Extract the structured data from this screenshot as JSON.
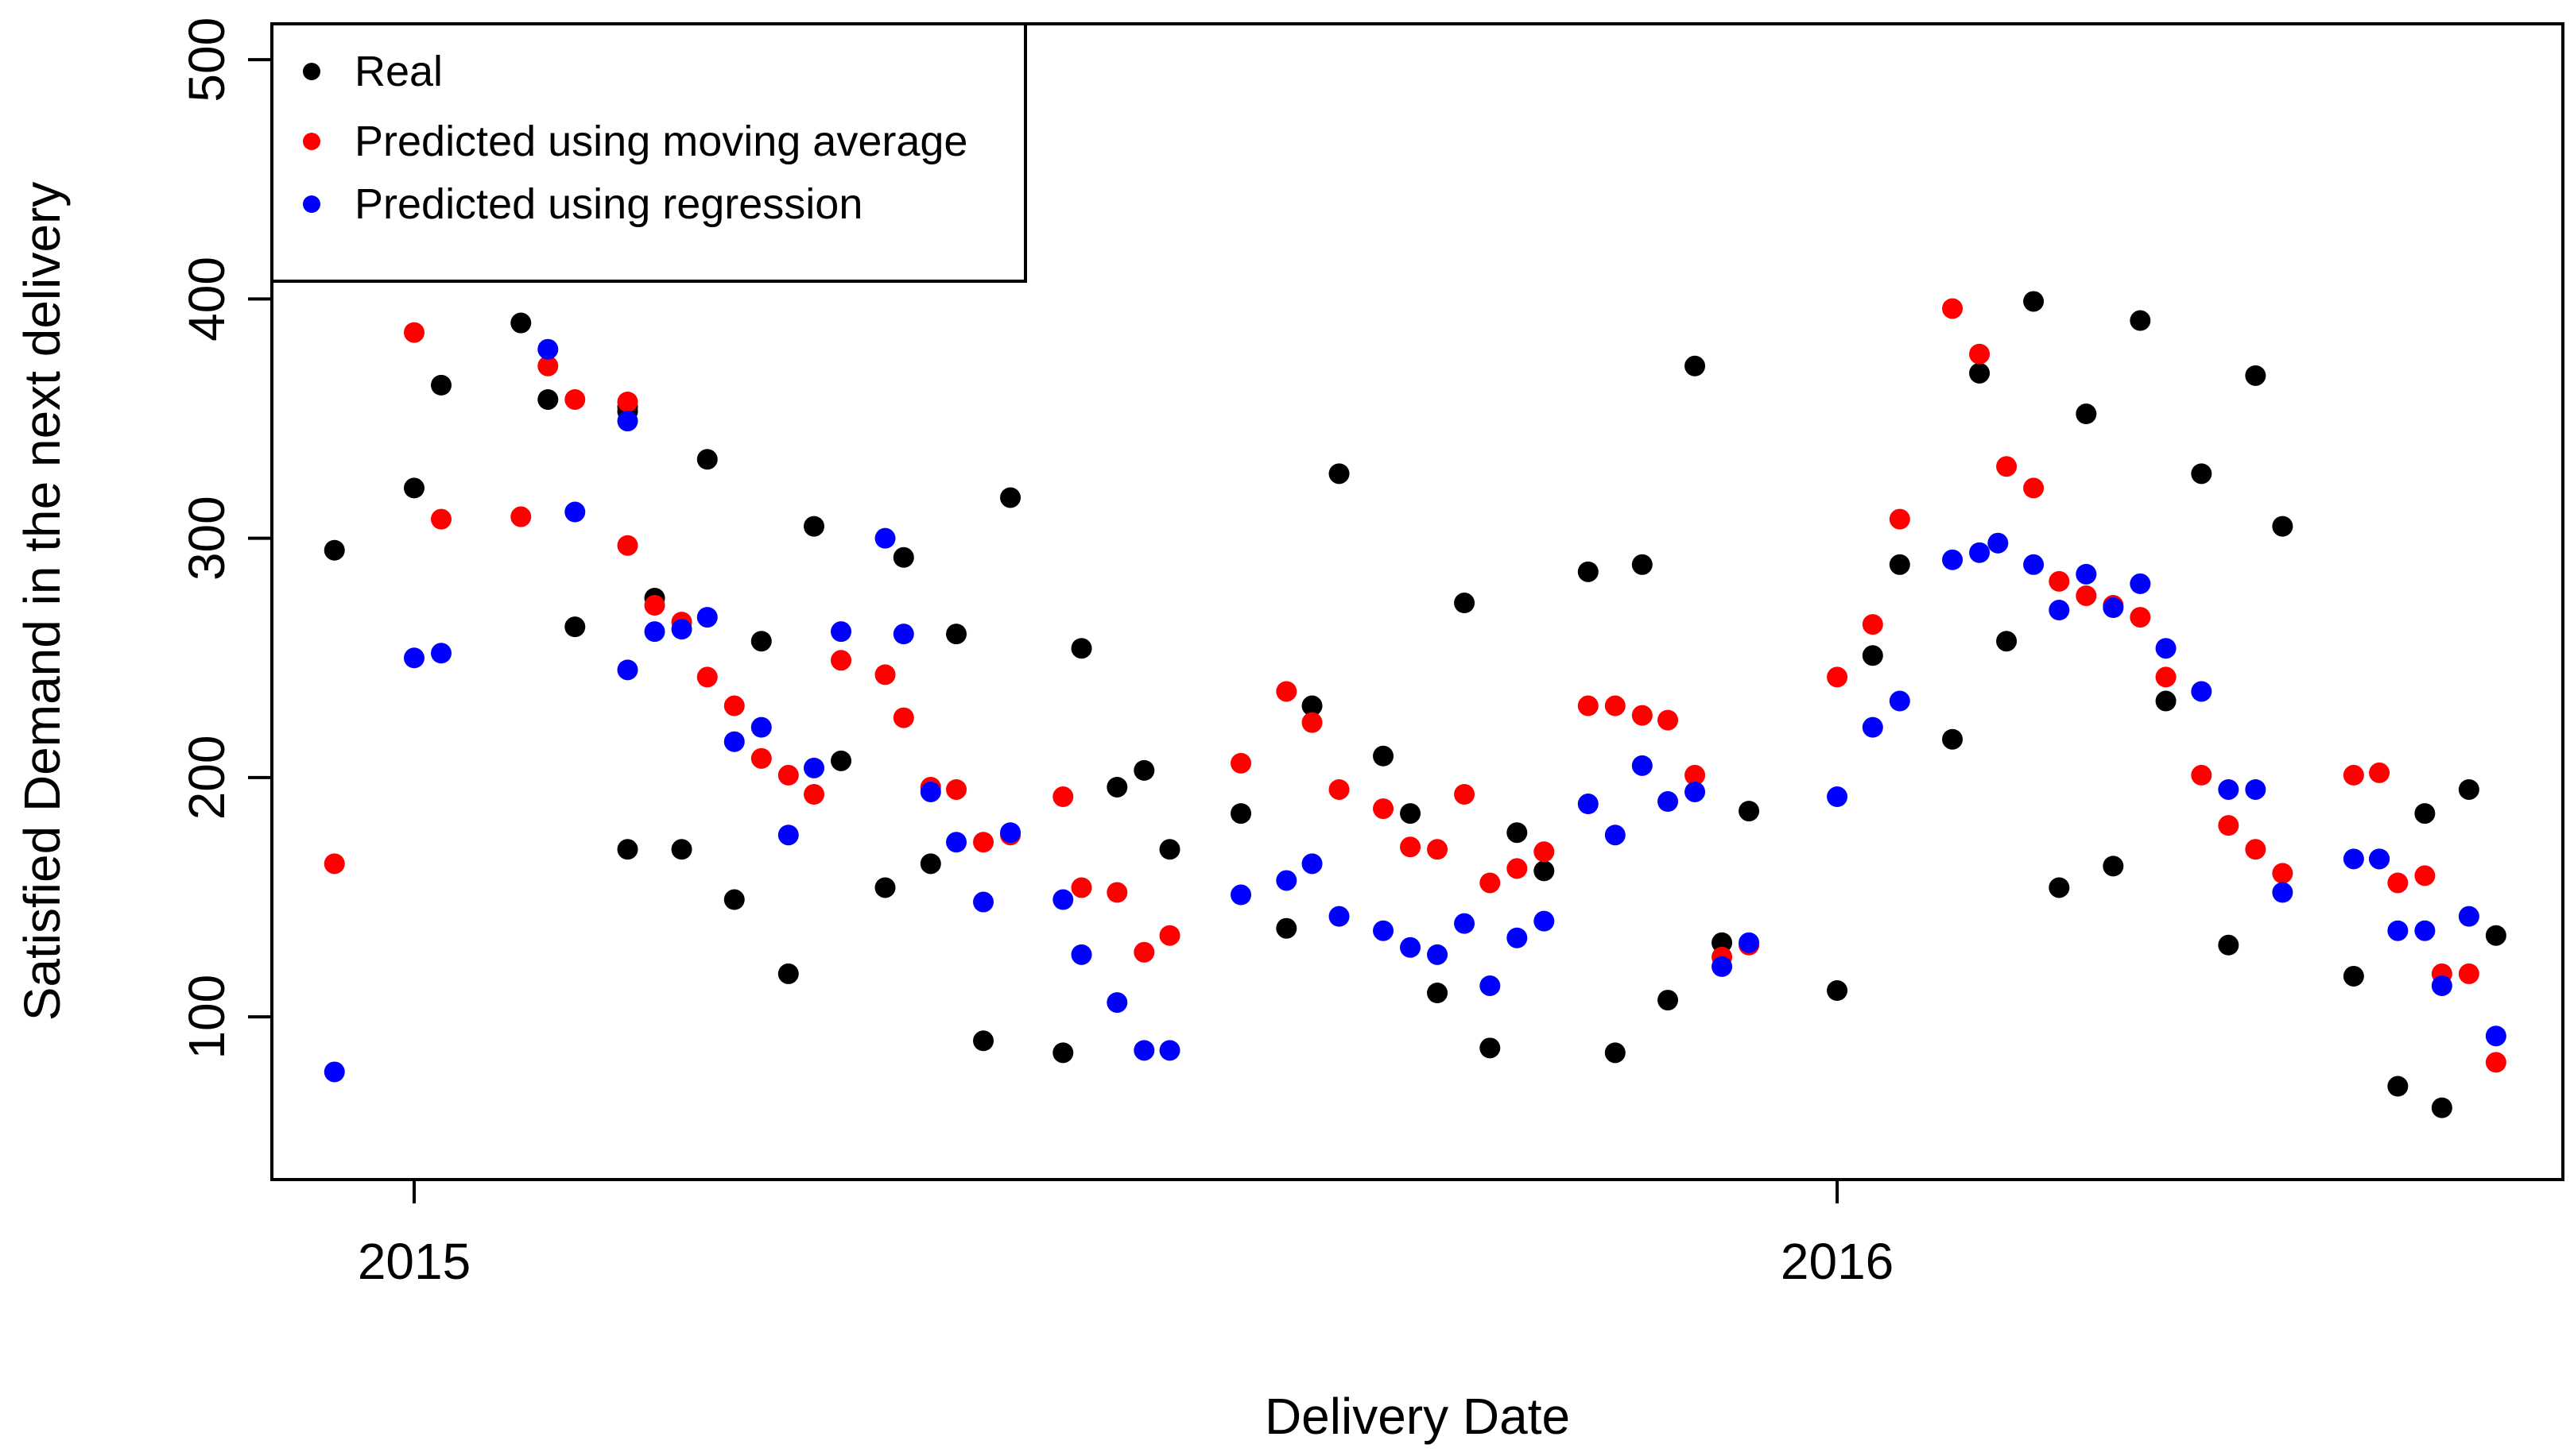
{
  "chart_data": {
    "type": "scatter",
    "title": "",
    "xlabel": "Delivery Date",
    "ylabel": "Satisfied Demand in the next delivery",
    "xlim": [
      2014.9,
      2016.51
    ],
    "ylim": [
      32,
      515
    ],
    "xticks": [
      2015,
      2016
    ],
    "xtick_labels": [
      "2015",
      "2016"
    ],
    "yticks": [
      100,
      200,
      300,
      400,
      500
    ],
    "ytick_labels": [
      "100",
      "200",
      "300",
      "400",
      "500"
    ],
    "legend_position": "top-left",
    "series": [
      {
        "name": "Real",
        "color": "#000000",
        "points": [
          [
            2014.944,
            295
          ],
          [
            2015.0,
            321
          ],
          [
            2015.019,
            364
          ],
          [
            2015.075,
            390
          ],
          [
            2015.094,
            358
          ],
          [
            2015.113,
            263
          ],
          [
            2015.15,
            355
          ],
          [
            2015.15,
            356
          ],
          [
            2015.15,
            356
          ],
          [
            2015.15,
            356
          ],
          [
            2015.15,
            356
          ],
          [
            2015.15,
            356
          ],
          [
            2015.15,
            356
          ],
          [
            2015.15,
            356
          ],
          [
            2015.15,
            356
          ],
          [
            2015.15,
            356
          ],
          [
            2015.15,
            356
          ],
          [
            2015.15,
            356
          ],
          [
            2015.15,
            356
          ],
          [
            2015.15,
            356
          ]
        ]
      }
    ]
  }
}
